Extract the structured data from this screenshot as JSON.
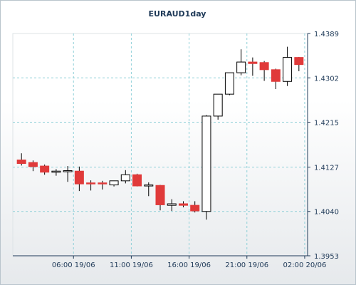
{
  "chart_data": {
    "type": "candlestick",
    "title": "EURAUD1day",
    "grid": true,
    "ylim": [
      1.3953,
      1.4389
    ],
    "y_ticks": [
      1.4389,
      1.4302,
      1.4215,
      1.4127,
      1.404,
      1.3953
    ],
    "y_tick_labels": [
      "1.4389",
      "1.4302",
      "1.4215",
      "1.4127",
      "1.4040",
      "1.3953"
    ],
    "x_tick_labels": [
      {
        "label": "06:00 19/06",
        "index": 4.5
      },
      {
        "label": "11:00 19/06",
        "index": 9.5
      },
      {
        "label": "16:00 19/06",
        "index": 14.5
      },
      {
        "label": "21:00 19/06",
        "index": 19.5
      },
      {
        "label": "02:00 20/06",
        "index": 24.5
      }
    ],
    "bull_color": "#ffffff",
    "bear_color": "#e03a3a",
    "grid_color": "#8fd0d8",
    "candles": [
      {
        "o": 1.4141,
        "h": 1.4154,
        "l": 1.413,
        "c": 1.4134
      },
      {
        "o": 1.4136,
        "h": 1.414,
        "l": 1.4119,
        "c": 1.4128
      },
      {
        "o": 1.4129,
        "h": 1.4132,
        "l": 1.4112,
        "c": 1.4117
      },
      {
        "o": 1.4117,
        "h": 1.4123,
        "l": 1.411,
        "c": 1.4119
      },
      {
        "o": 1.4118,
        "h": 1.4129,
        "l": 1.4098,
        "c": 1.412
      },
      {
        "o": 1.4119,
        "h": 1.4128,
        "l": 1.408,
        "c": 1.4094
      },
      {
        "o": 1.4096,
        "h": 1.4101,
        "l": 1.4081,
        "c": 1.4095
      },
      {
        "o": 1.4096,
        "h": 1.41,
        "l": 1.4083,
        "c": 1.4095
      },
      {
        "o": 1.4092,
        "h": 1.41,
        "l": 1.4089,
        "c": 1.41
      },
      {
        "o": 1.41,
        "h": 1.4121,
        "l": 1.4095,
        "c": 1.4112
      },
      {
        "o": 1.4112,
        "h": 1.4114,
        "l": 1.4089,
        "c": 1.409
      },
      {
        "o": 1.4091,
        "h": 1.4097,
        "l": 1.407,
        "c": 1.4092
      },
      {
        "o": 1.4091,
        "h": 1.4092,
        "l": 1.4042,
        "c": 1.4053
      },
      {
        "o": 1.4052,
        "h": 1.4064,
        "l": 1.4041,
        "c": 1.4055
      },
      {
        "o": 1.4055,
        "h": 1.406,
        "l": 1.4048,
        "c": 1.4052
      },
      {
        "o": 1.4052,
        "h": 1.406,
        "l": 1.4038,
        "c": 1.4041
      },
      {
        "o": 1.404,
        "h": 1.4229,
        "l": 1.4024,
        "c": 1.4227
      },
      {
        "o": 1.4227,
        "h": 1.4268,
        "l": 1.422,
        "c": 1.427
      },
      {
        "o": 1.427,
        "h": 1.4312,
        "l": 1.4268,
        "c": 1.4312
      },
      {
        "o": 1.4312,
        "h": 1.4358,
        "l": 1.4307,
        "c": 1.4333
      },
      {
        "o": 1.4333,
        "h": 1.4342,
        "l": 1.4306,
        "c": 1.433
      },
      {
        "o": 1.4332,
        "h": 1.4335,
        "l": 1.4296,
        "c": 1.4318
      },
      {
        "o": 1.4318,
        "h": 1.432,
        "l": 1.428,
        "c": 1.4295
      },
      {
        "o": 1.4295,
        "h": 1.4363,
        "l": 1.4286,
        "c": 1.4342
      },
      {
        "o": 1.4342,
        "h": 1.4343,
        "l": 1.4315,
        "c": 1.4328
      }
    ]
  }
}
